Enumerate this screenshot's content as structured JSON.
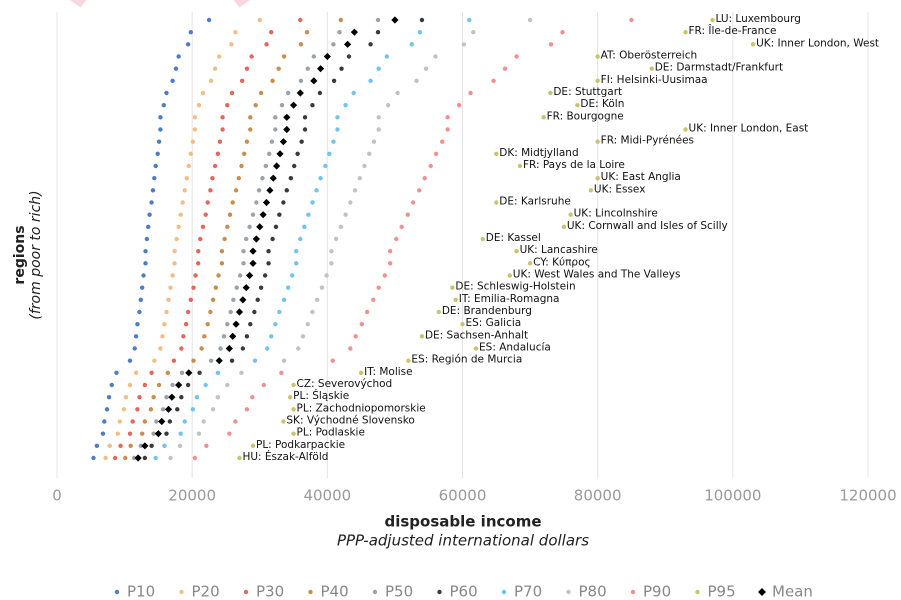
{
  "chart_data": {
    "type": "scatter",
    "x_label": "disposable income",
    "x_sublabel": "PPP-adjusted international dollars",
    "y_label": "regions",
    "y_sublabel": "(from poor to rich)",
    "xlim": [
      0,
      120000
    ],
    "xticks": [
      0,
      20000,
      40000,
      60000,
      80000,
      100000,
      120000
    ],
    "grid": true,
    "categories": [
      "HU: Észak-Alföld",
      "PL: Podkarpackie",
      "PL: Podlaskie",
      "SK: Východné Slovensko",
      "PL: Zachodniopomorskie",
      "PL: Śląskie",
      "CZ: Severovýchod",
      "IT: Molise",
      "ES: Región de Murcia",
      "ES: Andalucía",
      "DE: Sachsen-Anhalt",
      "ES: Galicia",
      "DE: Brandenburg",
      "IT: Emilia-Romagna",
      "DE: Schleswig-Holstein",
      "UK: West Wales and The Valleys",
      "CY: Κύπρος",
      "UK: Lancashire",
      "DE: Kassel",
      "UK: Cornwall and Isles of Scilly",
      "UK: Lincolnshire",
      "DE: Karlsruhe",
      "UK: Essex",
      "UK: East Anglia",
      "FR: Pays de la Loire",
      "DK: Midtjylland",
      "FR: Midi-Pyrénées",
      "UK: Inner London, East",
      "FR: Bourgogne",
      "DE: Köln",
      "DE: Stuttgart",
      "FI: Helsinki-Uusimaa",
      "DE: Darmstadt/Frankfurt",
      "AT: Oberösterreich",
      "UK: Inner London, West",
      "FR: Île-de-France",
      "LU: Luxembourg"
    ],
    "series": [
      {
        "name": "P10",
        "color": "#4f7cc6",
        "values": [
          5400,
          5900,
          6800,
          7000,
          7400,
          7700,
          8100,
          8800,
          10800,
          11500,
          11700,
          11900,
          12200,
          12400,
          12600,
          12800,
          13100,
          13100,
          13300,
          13500,
          13700,
          14000,
          14200,
          14400,
          14600,
          14900,
          15100,
          15300,
          15300,
          15800,
          16200,
          17100,
          17600,
          18000,
          19400,
          19800,
          22500
        ]
      },
      {
        "name": "P20",
        "color": "#f2bd86",
        "values": [
          7200,
          7800,
          9000,
          9300,
          9900,
          10200,
          10800,
          11700,
          14400,
          15300,
          15600,
          15900,
          16200,
          16500,
          16800,
          17100,
          17400,
          17400,
          17700,
          18000,
          18300,
          18600,
          18900,
          19200,
          19500,
          19800,
          20100,
          20400,
          20400,
          21000,
          21600,
          22800,
          23400,
          24000,
          25800,
          26400,
          30000
        ]
      },
      {
        "name": "P30",
        "color": "#e4675a",
        "values": [
          8600,
          9400,
          10800,
          11200,
          11900,
          12200,
          13000,
          14000,
          17300,
          18400,
          18700,
          19100,
          19400,
          19800,
          20200,
          20500,
          20900,
          20900,
          21200,
          21600,
          22000,
          22300,
          22700,
          23000,
          23400,
          23800,
          24100,
          24500,
          24500,
          25200,
          25900,
          27400,
          28100,
          28800,
          31000,
          31700,
          36000
        ]
      },
      {
        "name": "P40",
        "color": "#c98d4c",
        "values": [
          10100,
          10900,
          12600,
          13000,
          13900,
          14300,
          15100,
          16400,
          20200,
          21400,
          21800,
          22300,
          22700,
          23100,
          23500,
          23900,
          24400,
          24400,
          24800,
          25200,
          25600,
          26000,
          26500,
          26900,
          27300,
          27700,
          28100,
          28600,
          28600,
          29400,
          30200,
          31900,
          32800,
          33600,
          36100,
          37000,
          42000
        ]
      },
      {
        "name": "P50",
        "color": "#9aa3ab",
        "values": [
          11400,
          12400,
          14300,
          14700,
          15700,
          16200,
          17100,
          18500,
          22800,
          24200,
          24700,
          25200,
          25700,
          26100,
          26600,
          27100,
          27600,
          27600,
          28000,
          28500,
          29000,
          29500,
          29900,
          30400,
          30900,
          31400,
          31800,
          32300,
          32300,
          33300,
          34200,
          36100,
          37100,
          38000,
          40900,
          41800,
          47500
        ]
      },
      {
        "name": "P60",
        "color": "#3a3a3a",
        "values": [
          13000,
          14000,
          16200,
          16700,
          17800,
          18400,
          19400,
          21100,
          25900,
          27500,
          28100,
          28600,
          29200,
          29700,
          30200,
          30800,
          31300,
          31300,
          31900,
          32400,
          32900,
          33500,
          34000,
          34600,
          35100,
          35600,
          36200,
          36700,
          36700,
          37800,
          38900,
          41000,
          42100,
          43200,
          46400,
          47500,
          54000
        ]
      },
      {
        "name": "P70",
        "color": "#6fc4f0",
        "values": [
          14600,
          15900,
          18300,
          18900,
          20100,
          20700,
          22000,
          23800,
          29300,
          31100,
          31700,
          32300,
          32900,
          33600,
          34200,
          34800,
          35400,
          35400,
          36000,
          36600,
          37200,
          37800,
          38400,
          39000,
          39700,
          40300,
          40900,
          41500,
          41500,
          42700,
          43900,
          46400,
          47600,
          48800,
          52500,
          53700,
          61000
        ]
      },
      {
        "name": "P80",
        "color": "#c2c2c2",
        "values": [
          16800,
          18200,
          21000,
          21700,
          23100,
          23800,
          25200,
          27300,
          33600,
          35700,
          36400,
          37100,
          37800,
          38500,
          39200,
          39900,
          40600,
          40600,
          41300,
          42000,
          42700,
          43400,
          44100,
          44800,
          45500,
          46200,
          46900,
          47600,
          47600,
          49000,
          50400,
          53200,
          54600,
          56000,
          60200,
          61600,
          70000
        ]
      },
      {
        "name": "P90",
        "color": "#f19090",
        "values": [
          20400,
          22100,
          25500,
          26400,
          28100,
          28900,
          30600,
          33200,
          40800,
          43400,
          44200,
          45100,
          45900,
          46800,
          47600,
          48500,
          49300,
          49300,
          50200,
          51000,
          51900,
          52700,
          53600,
          54400,
          55300,
          56100,
          57000,
          57800,
          57800,
          59500,
          61200,
          64600,
          66300,
          68000,
          73100,
          74800,
          85000
        ]
      },
      {
        "name": "P95",
        "color": "#c9c36a",
        "values": [
          27000,
          29000,
          35000,
          33500,
          35000,
          34500,
          35000,
          45000,
          52000,
          62000,
          54000,
          60000,
          56500,
          59000,
          58500,
          67000,
          70000,
          68000,
          63000,
          75000,
          76000,
          65000,
          79000,
          80000,
          68500,
          65000,
          80000,
          93000,
          72000,
          77000,
          73000,
          80000,
          88000,
          80000,
          103000,
          93000,
          97000
        ]
      },
      {
        "name": "Mean",
        "color": "#000000",
        "marker": "diamond",
        "values": [
          12000,
          13000,
          15000,
          15500,
          16500,
          17000,
          18000,
          19500,
          24000,
          25500,
          26000,
          26500,
          27000,
          27500,
          28000,
          28500,
          29000,
          29000,
          29500,
          30000,
          30500,
          31000,
          31500,
          32000,
          32500,
          33000,
          33500,
          34000,
          34000,
          35000,
          36000,
          38000,
          39000,
          40000,
          43000,
          44000,
          50000
        ]
      }
    ]
  }
}
